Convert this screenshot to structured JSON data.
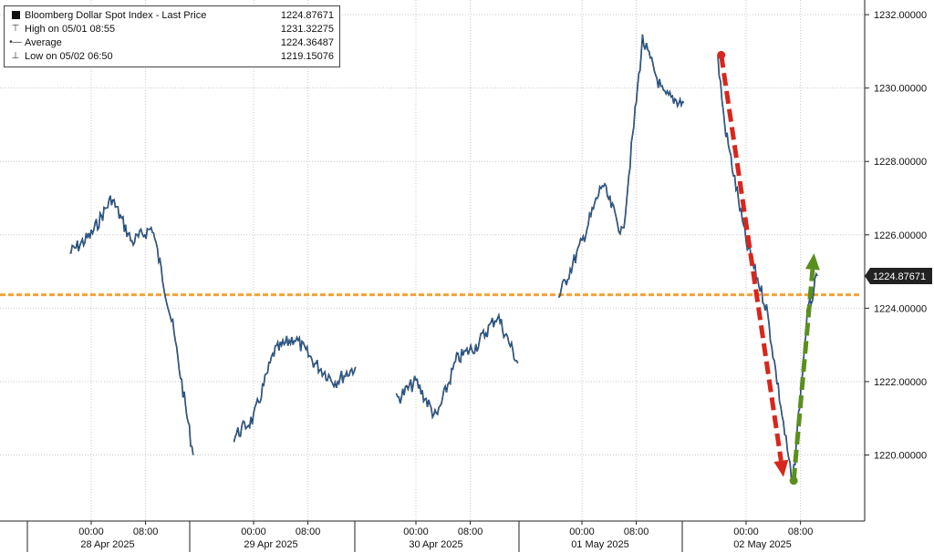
{
  "legend": {
    "items": [
      {
        "symbol": "square-icon",
        "label": "Bloomberg Dollar Spot Index - Last Price",
        "value": "1224.87671"
      },
      {
        "symbol": "high-marker-icon",
        "label": "High on 05/01 08:55",
        "value": "1231.32275"
      },
      {
        "symbol": "average-marker-icon",
        "label": "Average",
        "value": "1224.36487"
      },
      {
        "symbol": "low-marker-icon",
        "label": "Low on 05/02 06:50",
        "value": "1219.15076"
      }
    ]
  },
  "colors": {
    "price_line": "#111111",
    "price_overlay": "#2f7fd6",
    "average_line": "#f2a33a",
    "down_arrow": "#d9261c",
    "up_arrow": "#5a8f1f",
    "grid": "#c8c8c8",
    "last_price_tag": "#222222"
  },
  "chart_data": {
    "type": "line",
    "title": "",
    "series": [
      {
        "name": "Bloomberg Dollar Spot Index - Last Price",
        "x": [
          "04/27 21:00",
          "04/28 00:00",
          "04/28 03:00",
          "04/28 06:00",
          "04/28 09:00",
          "04/28 12:00",
          "04/28 15:00",
          "04/28 21:00",
          "04/29 00:00",
          "04/29 03:00",
          "04/29 06:00",
          "04/29 09:00",
          "04/29 12:00",
          "04/29 15:00",
          "04/29 21:00",
          "04/30 00:00",
          "04/30 03:00",
          "04/30 06:00",
          "04/30 09:00",
          "04/30 12:00",
          "04/30 15:00",
          "04/30 21:00",
          "05/01 00:00",
          "05/01 03:00",
          "05/01 06:00",
          "05/01 08:55",
          "05/01 12:00",
          "05/01 15:00",
          "05/01 20:00",
          "05/01 21:00",
          "05/02 00:00",
          "05/02 03:00",
          "05/02 06:50",
          "05/02 09:00",
          "05/02 10:30"
        ],
        "y": [
          1225.5,
          1226.0,
          1227.0,
          1225.8,
          1226.2,
          1223.5,
          1220.0,
          1220.5,
          1221.0,
          1222.8,
          1223.2,
          1222.5,
          1222.0,
          1222.4,
          1221.5,
          1222.0,
          1221.0,
          1222.6,
          1223.0,
          1223.8,
          1222.5,
          1224.3,
          1225.8,
          1227.4,
          1226.0,
          1231.32,
          1229.8,
          1229.6,
          1230.8,
          1229.0,
          1225.8,
          1224.0,
          1219.15,
          1223.8,
          1224.88
        ]
      }
    ],
    "average": 1224.36487,
    "last_price": "1224.87671",
    "y_ticks": [
      "1220.00000",
      "1222.00000",
      "1224.00000",
      "1226.00000",
      "1228.00000",
      "1230.00000",
      "1232.00000"
    ],
    "ylim": [
      1218.2,
      1232.4
    ],
    "x_day_labels": [
      "28 Apr 2025",
      "29 Apr 2025",
      "30 Apr 2025",
      "01 May 2025",
      "02 May 2025"
    ],
    "x_time_labels": [
      "00:00",
      "08:00",
      "00:00",
      "08:00",
      "00:00",
      "08:00",
      "00:00",
      "08:00",
      "00:00",
      "08:00"
    ],
    "annotations": [
      {
        "type": "arrow",
        "color": "red",
        "direction": "down",
        "from": [
          "05/01 20:30",
          1230.9
        ],
        "to": [
          "05/02 05:30",
          1219.4
        ]
      },
      {
        "type": "arrow",
        "color": "green",
        "direction": "up",
        "from": [
          "05/02 07:00",
          1219.3
        ],
        "to": [
          "05/02 10:00",
          1225.5
        ]
      }
    ],
    "grid": true
  }
}
